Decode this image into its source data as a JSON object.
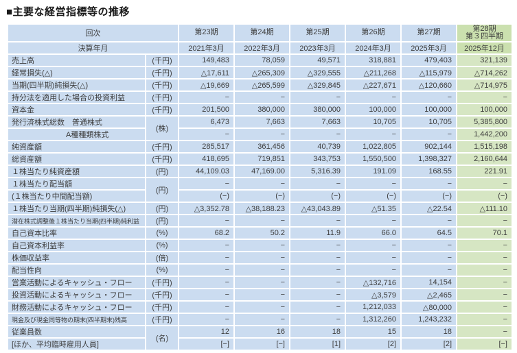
{
  "page": {
    "title": "■主要な経営指標等の推移"
  },
  "colors": {
    "cell_blue": "#cbdcf0",
    "latest_column_green": "#d6e6c3",
    "latest_header_green": "#cbe0af",
    "grid_white": "#ffffff"
  },
  "table": {
    "header": {
      "row_label": "回次",
      "periods": [
        [
          "第23期"
        ],
        [
          "第24期"
        ],
        [
          "第25期"
        ],
        [
          "第26期"
        ],
        [
          "第27期"
        ],
        [
          "第28期",
          "第３四半期"
        ]
      ],
      "fiscal_label": "決算年月",
      "fiscal_values": [
        "2021年3月",
        "2022年3月",
        "2023年3月",
        "2024年3月",
        "2025年3月",
        "2025年12月"
      ]
    },
    "rows": [
      {
        "label": "売上高",
        "unit": "(千円)",
        "values": [
          "149,483",
          "78,059",
          "49,571",
          "318,881",
          "479,403",
          "321,139"
        ]
      },
      {
        "label": "経常損失(△)",
        "unit": "(千円)",
        "values": [
          "△17,611",
          "△265,309",
          "△329,555",
          "△211,268",
          "△115,979",
          "△714,262"
        ]
      },
      {
        "label": "当期(四半期)純損失(△)",
        "unit": "(千円)",
        "values": [
          "△19,669",
          "△265,599",
          "△329,845",
          "△227,671",
          "△120,660",
          "△714,975"
        ]
      },
      {
        "label": "持分法を適用した場合の投資利益",
        "unit": "(千円)",
        "values": [
          "−",
          "−",
          "−",
          "−",
          "−",
          "−"
        ]
      },
      {
        "label": "資本金",
        "unit": "(千円)",
        "values": [
          "201,500",
          "380,000",
          "380,000",
          "100,000",
          "100,000",
          "100,000"
        ]
      },
      {
        "label": "発行済株式総数　普通株式",
        "unit": "(株)",
        "unit_rowspan": 2,
        "values": [
          "6,473",
          "7,663",
          "7,663",
          "10,705",
          "10,705",
          "5,385,800"
        ]
      },
      {
        "label": "A種種類株式",
        "unit": null,
        "indent": true,
        "values": [
          "−",
          "−",
          "−",
          "−",
          "−",
          "1,442,200"
        ]
      },
      {
        "label": "純資産額",
        "unit": "(千円)",
        "values": [
          "285,517",
          "361,456",
          "40,739",
          "1,022,805",
          "902,144",
          "1,515,198"
        ]
      },
      {
        "label": "総資産額",
        "unit": "(千円)",
        "values": [
          "418,695",
          "719,851",
          "343,753",
          "1,550,500",
          "1,398,327",
          "2,160,644"
        ]
      },
      {
        "label": "１株当たり純資産額",
        "unit": "(円)",
        "values": [
          "44,109.03",
          "47,169.00",
          "5,316.39",
          "191.09",
          "168.55",
          "221.91"
        ]
      },
      {
        "label": "１株当たり配当額",
        "unit": "(円)",
        "unit_rowspan": 2,
        "values": [
          "−",
          "−",
          "−",
          "−",
          "−",
          "−"
        ]
      },
      {
        "label": "(１株当たり中間配当額)",
        "unit": null,
        "values": [
          "(−)",
          "(−)",
          "(−)",
          "(−)",
          "(−)",
          "(−)"
        ]
      },
      {
        "label": "１株当たり当期(四半期)純損失(△)",
        "unit": "(円)",
        "values": [
          "△3,352.78",
          "△38,188.23",
          "△43,043.89",
          "△51.35",
          "△22.54",
          "△111.10"
        ]
      },
      {
        "label": "潜在株式調整後１株当たり当期(四半期)純利益",
        "unit": "(円)",
        "small": true,
        "values": [
          "−",
          "−",
          "−",
          "−",
          "−",
          "−"
        ]
      },
      {
        "label": "自己資本比率",
        "unit": "(%)",
        "values": [
          "68.2",
          "50.2",
          "11.9",
          "66.0",
          "64.5",
          "70.1"
        ]
      },
      {
        "label": "自己資本利益率",
        "unit": "(%)",
        "values": [
          "−",
          "−",
          "−",
          "−",
          "−",
          "−"
        ]
      },
      {
        "label": "株価収益率",
        "unit": "(倍)",
        "values": [
          "−",
          "−",
          "−",
          "−",
          "−",
          "−"
        ]
      },
      {
        "label": "配当性向",
        "unit": "(%)",
        "values": [
          "−",
          "−",
          "−",
          "−",
          "−",
          "−"
        ]
      },
      {
        "label": "営業活動によるキャッシュ・フロー",
        "unit": "(千円)",
        "values": [
          "−",
          "−",
          "−",
          "△132,716",
          "14,154",
          "−"
        ]
      },
      {
        "label": "投資活動によるキャッシュ・フロー",
        "unit": "(千円)",
        "values": [
          "−",
          "−",
          "−",
          "△3,579",
          "△2,465",
          "−"
        ]
      },
      {
        "label": "財務活動によるキャッシュ・フロー",
        "unit": "(千円)",
        "values": [
          "−",
          "−",
          "−",
          "1,212,033",
          "△80,000",
          "−"
        ]
      },
      {
        "label": "現金及び現金同等物の期末(四半期末)残高",
        "unit": "(千円)",
        "small": true,
        "values": [
          "−",
          "−",
          "−",
          "1,312,260",
          "1,243,232",
          "−"
        ]
      },
      {
        "label": "従業員数",
        "unit": "(名)",
        "unit_rowspan": 2,
        "values": [
          "12",
          "16",
          "18",
          "15",
          "18",
          "−"
        ]
      },
      {
        "label": "[ほか、平均臨時雇用人員]",
        "unit": null,
        "values": [
          "[−]",
          "[−]",
          "[1]",
          "[2]",
          "[2]",
          "[−]"
        ]
      }
    ]
  }
}
